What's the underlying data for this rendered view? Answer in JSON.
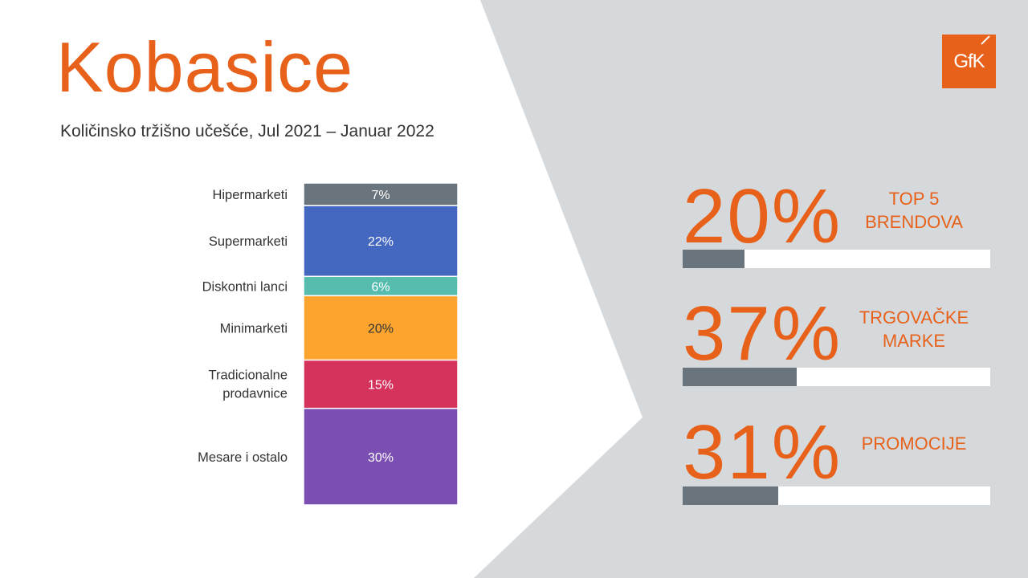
{
  "title": "Kobasice",
  "subtitle": "Količinsko tržišno učešće, Jul 2021 – Januar 2022",
  "logo": {
    "text": "GfK",
    "color": "#e8611a"
  },
  "colors": {
    "accent": "#e8611a",
    "panel": "#d5d9dc",
    "bar_track": "#ffffff",
    "bar_fill": "#6a747c"
  },
  "chart_data": {
    "type": "bar",
    "stacked": true,
    "orientation": "vertical",
    "categories": [
      "Hipermarketi",
      "Supermarketi",
      "Diskontni lanci",
      "Minimarketi",
      "Tradicionalne prodavnice",
      "Mesare i ostalo"
    ],
    "values": [
      7,
      22,
      6,
      20,
      15,
      30
    ],
    "data_labels": [
      "7%",
      "22%",
      "6%",
      "20%",
      "15%",
      "30%"
    ],
    "colors": [
      "#6a747c",
      "#4467c0",
      "#55bcae",
      "#fca42e",
      "#d5325c",
      "#7b4fb2"
    ],
    "unit": "%"
  },
  "kpis": [
    {
      "value": "20%",
      "label": "TOP 5 BRENDOVA",
      "share": 0.2
    },
    {
      "value": "37%",
      "label": "TRGOVAČKE MARKE",
      "share": 0.37
    },
    {
      "value": "31%",
      "label": "PROMOCIJE",
      "share": 0.31
    }
  ]
}
